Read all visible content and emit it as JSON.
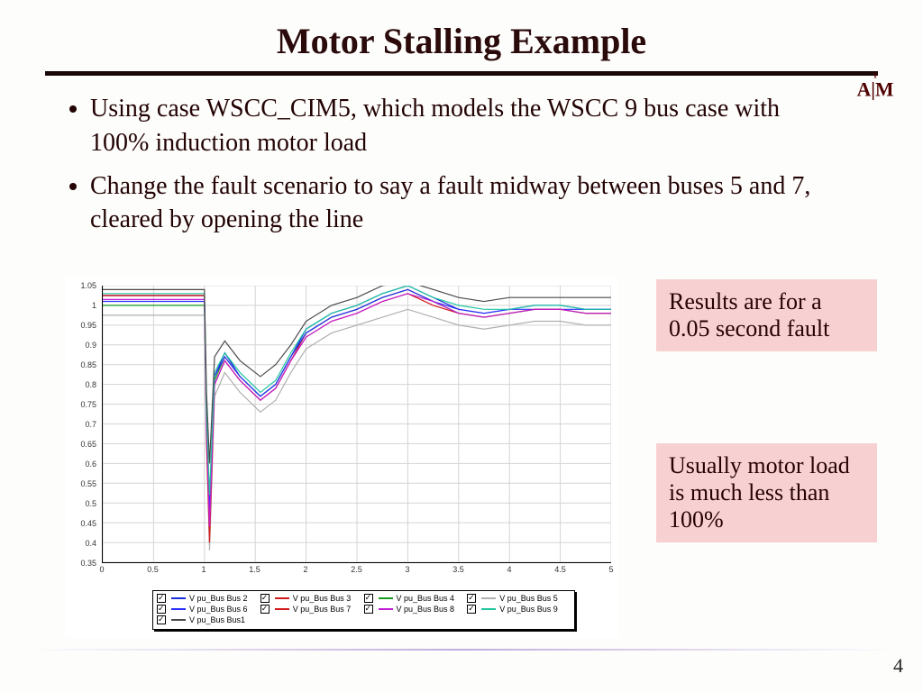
{
  "title": "Motor Stalling Example",
  "bullets": [
    "Using case WSCC_CIM5, which models the WSCC 9 bus case with 100% induction motor load",
    "Change the fault scenario to say a fault midway between buses 5 and 7, cleared by opening the line"
  ],
  "note1": "Results are for a 0.05 second fault",
  "note2": "Usually motor load is much less than 100%",
  "page_number": "4",
  "logo_text": "A|M",
  "chart": {
    "type": "line",
    "background_color": "#ffffff",
    "grid_color": "#d4d4d4",
    "xlim": [
      0,
      5
    ],
    "ylim": [
      0.35,
      1.05
    ],
    "xtick_step": 0.5,
    "ytick_step": 0.05,
    "x_ticks": [
      0,
      0.5,
      1,
      1.5,
      2,
      2.5,
      3,
      3.5,
      4,
      4.5,
      5
    ],
    "y_ticks": [
      0.35,
      0.4,
      0.45,
      0.5,
      0.55,
      0.6,
      0.65,
      0.7,
      0.75,
      0.8,
      0.85,
      0.9,
      0.95,
      1,
      1.05
    ],
    "label_fontsize": 9,
    "legend_position": "bottom",
    "x_samples": [
      0,
      0.5,
      1.0,
      1.02,
      1.05,
      1.1,
      1.2,
      1.35,
      1.55,
      1.7,
      1.85,
      2.0,
      2.25,
      2.5,
      2.75,
      3.0,
      3.25,
      3.5,
      3.75,
      4.0,
      4.25,
      4.5,
      4.75,
      5.0
    ],
    "series": [
      {
        "name": "V pu_Bus Bus 2",
        "color": "#1b2dd6",
        "y": [
          1.025,
          1.025,
          1.025,
          0.72,
          0.5,
          0.82,
          0.88,
          0.82,
          0.77,
          0.8,
          0.87,
          0.94,
          0.98,
          1.0,
          1.03,
          1.05,
          1.02,
          0.99,
          0.98,
          0.99,
          1.0,
          1.0,
          0.99,
          0.99
        ]
      },
      {
        "name": "V pu_Bus Bus 3",
        "color": "#d21a1a",
        "y": [
          1.025,
          1.025,
          1.025,
          0.68,
          0.42,
          0.8,
          0.86,
          0.81,
          0.76,
          0.79,
          0.86,
          0.93,
          0.97,
          0.99,
          1.02,
          1.04,
          1.01,
          0.98,
          0.97,
          0.98,
          0.99,
          0.99,
          0.98,
          0.98
        ]
      },
      {
        "name": "V pu_Bus Bus 4",
        "color": "#169b1d",
        "y": [
          1.0,
          1.0,
          1.0,
          0.7,
          0.46,
          0.81,
          0.87,
          0.82,
          0.77,
          0.8,
          0.87,
          0.93,
          0.97,
          0.99,
          1.02,
          1.04,
          1.01,
          0.98,
          0.97,
          0.98,
          0.99,
          0.99,
          0.98,
          0.98
        ]
      },
      {
        "name": "V pu_Bus Bus 5",
        "color": "#b0b0b0",
        "y": [
          0.975,
          0.975,
          0.975,
          0.65,
          0.38,
          0.77,
          0.83,
          0.78,
          0.73,
          0.76,
          0.83,
          0.89,
          0.93,
          0.95,
          0.97,
          0.99,
          0.97,
          0.95,
          0.94,
          0.95,
          0.96,
          0.96,
          0.95,
          0.95
        ]
      },
      {
        "name": "V pu_Bus Bus 6",
        "color": "#2a2efc",
        "y": [
          1.01,
          1.01,
          1.01,
          0.71,
          0.47,
          0.82,
          0.87,
          0.82,
          0.77,
          0.8,
          0.87,
          0.93,
          0.97,
          0.99,
          1.02,
          1.04,
          1.01,
          0.99,
          0.98,
          0.99,
          0.99,
          0.99,
          0.99,
          0.99
        ]
      },
      {
        "name": "V pu_Bus Bus 7",
        "color": "#d21a1a",
        "y": [
          1.025,
          1.025,
          1.025,
          0.66,
          0.4,
          0.8,
          0.86,
          0.81,
          0.76,
          0.79,
          0.86,
          0.92,
          0.96,
          0.98,
          1.01,
          1.03,
          1.0,
          0.98,
          0.97,
          0.98,
          0.99,
          0.99,
          0.98,
          0.98
        ]
      },
      {
        "name": "V pu_Bus Bus 8",
        "color": "#c31fd4",
        "y": [
          1.015,
          1.015,
          1.015,
          0.69,
          0.44,
          0.8,
          0.86,
          0.81,
          0.76,
          0.79,
          0.86,
          0.92,
          0.96,
          0.98,
          1.01,
          1.03,
          1.01,
          0.98,
          0.97,
          0.98,
          0.99,
          0.99,
          0.98,
          0.98
        ]
      },
      {
        "name": "V pu_Bus Bus 9",
        "color": "#1fc6a0",
        "y": [
          1.03,
          1.03,
          1.03,
          0.73,
          0.52,
          0.83,
          0.88,
          0.83,
          0.78,
          0.81,
          0.88,
          0.94,
          0.98,
          1.0,
          1.03,
          1.05,
          1.02,
          1.0,
          0.99,
          0.99,
          1.0,
          1.0,
          0.99,
          0.99
        ]
      },
      {
        "name": "V pu_Bus Bus1",
        "color": "#4a4a4a",
        "y": [
          1.04,
          1.04,
          1.04,
          0.78,
          0.6,
          0.87,
          0.91,
          0.86,
          0.82,
          0.85,
          0.9,
          0.96,
          1.0,
          1.02,
          1.05,
          1.06,
          1.04,
          1.02,
          1.01,
          1.02,
          1.02,
          1.02,
          1.02,
          1.02
        ]
      }
    ]
  }
}
